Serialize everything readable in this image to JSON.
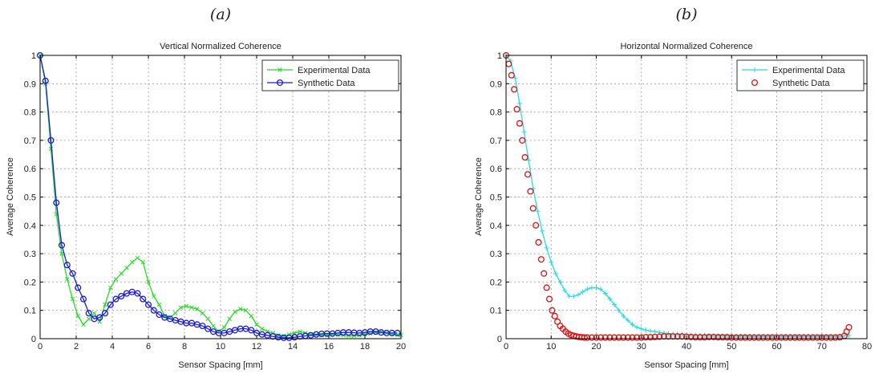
{
  "chart_data": [
    {
      "type": "line",
      "panel_label": "(a)",
      "title": "Vertical Normalized Coherence",
      "xlabel": "Sensor Spacing [mm]",
      "ylabel": "Average Coherence",
      "xlim": [
        0,
        20
      ],
      "ylim": [
        0,
        1
      ],
      "xticks": [
        0,
        2,
        4,
        6,
        8,
        10,
        12,
        14,
        16,
        18,
        20
      ],
      "yticks": [
        0,
        0.1,
        0.2,
        0.3,
        0.4,
        0.5,
        0.6,
        0.7,
        0.8,
        0.9,
        1
      ],
      "grid": true,
      "legend_position": "top-right",
      "series": [
        {
          "name": "Experimental Data",
          "color": "#22dd22",
          "marker": "x",
          "x": [
            0,
            0.3,
            0.6,
            0.9,
            1.2,
            1.5,
            1.8,
            2.1,
            2.4,
            2.7,
            3.0,
            3.3,
            3.6,
            3.9,
            4.2,
            4.5,
            4.8,
            5.1,
            5.4,
            5.7,
            6.0,
            6.3,
            6.6,
            6.9,
            7.2,
            7.5,
            7.8,
            8.1,
            8.4,
            8.7,
            9.0,
            9.3,
            9.6,
            9.9,
            10.2,
            10.5,
            10.8,
            11.1,
            11.4,
            11.7,
            12.0,
            12.3,
            12.6,
            12.9,
            13.2,
            13.5,
            13.8,
            14.1,
            14.4,
            14.7,
            15.0,
            15.3,
            15.6,
            15.9,
            16.2,
            16.5,
            16.8,
            17.1,
            17.4,
            17.7,
            18.0,
            18.3,
            18.6,
            18.9,
            19.2,
            19.5,
            19.8,
            20.0
          ],
          "y": [
            1.0,
            0.9,
            0.67,
            0.44,
            0.3,
            0.21,
            0.14,
            0.08,
            0.05,
            0.07,
            0.09,
            0.06,
            0.12,
            0.18,
            0.21,
            0.23,
            0.25,
            0.27,
            0.285,
            0.27,
            0.2,
            0.15,
            0.12,
            0.08,
            0.075,
            0.09,
            0.11,
            0.115,
            0.11,
            0.105,
            0.09,
            0.07,
            0.045,
            0.025,
            0.04,
            0.07,
            0.095,
            0.105,
            0.1,
            0.08,
            0.05,
            0.035,
            0.025,
            0.02,
            0.012,
            0.01,
            0.015,
            0.02,
            0.025,
            0.02,
            0.015,
            0.013,
            0.012,
            0.013,
            0.015,
            0.014,
            0.012,
            0.01,
            0.01,
            0.012,
            0.015,
            0.018,
            0.022,
            0.024,
            0.02,
            0.016,
            0.014,
            0.012
          ]
        },
        {
          "name": "Synthetic Data",
          "color": "#1a1ad9",
          "marker": "o",
          "x": [
            0,
            0.3,
            0.6,
            0.9,
            1.2,
            1.5,
            1.8,
            2.1,
            2.4,
            2.7,
            3.0,
            3.3,
            3.6,
            3.9,
            4.2,
            4.5,
            4.8,
            5.1,
            5.4,
            5.7,
            6.0,
            6.3,
            6.6,
            6.9,
            7.2,
            7.5,
            7.8,
            8.1,
            8.4,
            8.7,
            9.0,
            9.3,
            9.6,
            9.9,
            10.2,
            10.5,
            10.8,
            11.1,
            11.4,
            11.7,
            12.0,
            12.3,
            12.6,
            12.9,
            13.2,
            13.5,
            13.8,
            14.1,
            14.4,
            14.7,
            15.0,
            15.3,
            15.6,
            15.9,
            16.2,
            16.5,
            16.8,
            17.1,
            17.4,
            17.7,
            18.0,
            18.3,
            18.6,
            18.9,
            19.2,
            19.5,
            19.8
          ],
          "y": [
            1.0,
            0.91,
            0.7,
            0.48,
            0.33,
            0.26,
            0.23,
            0.18,
            0.14,
            0.09,
            0.07,
            0.075,
            0.09,
            0.12,
            0.14,
            0.15,
            0.16,
            0.165,
            0.16,
            0.14,
            0.12,
            0.1,
            0.085,
            0.075,
            0.07,
            0.065,
            0.06,
            0.055,
            0.055,
            0.05,
            0.045,
            0.035,
            0.025,
            0.02,
            0.02,
            0.025,
            0.03,
            0.035,
            0.035,
            0.03,
            0.02,
            0.015,
            0.012,
            0.008,
            0.005,
            0.003,
            0.003,
            0.005,
            0.008,
            0.01,
            0.012,
            0.015,
            0.017,
            0.018,
            0.018,
            0.02,
            0.022,
            0.022,
            0.021,
            0.02,
            0.022,
            0.025,
            0.025,
            0.022,
            0.02,
            0.02,
            0.02
          ]
        }
      ]
    },
    {
      "type": "line",
      "panel_label": "(b)",
      "title": "Horizontal Normalized Coherence",
      "xlabel": "Sensor Spacing [mm]",
      "ylabel": "Average Coherence",
      "xlim": [
        0,
        80
      ],
      "ylim": [
        0,
        1
      ],
      "xticks": [
        0,
        10,
        20,
        30,
        40,
        50,
        60,
        70,
        80
      ],
      "yticks": [
        0,
        0.1,
        0.2,
        0.3,
        0.4,
        0.5,
        0.6,
        0.7,
        0.8,
        0.9,
        1
      ],
      "grid": true,
      "legend_position": "top-right",
      "series": [
        {
          "name": "Experimental Data",
          "color": "#22dde6",
          "marker": "+",
          "x": [
            0,
            1,
            2,
            3,
            4,
            5,
            6,
            7,
            8,
            9,
            10,
            11,
            12,
            13,
            14,
            15,
            16,
            17,
            18,
            19,
            20,
            21,
            22,
            23,
            24,
            25,
            26,
            27,
            28,
            29,
            30,
            31,
            32,
            33,
            34,
            35,
            36,
            37,
            38,
            39,
            40,
            41,
            42,
            43,
            44,
            45,
            46,
            47,
            48,
            49,
            50,
            51,
            52,
            53,
            54,
            55,
            56,
            57,
            58,
            59,
            60,
            61,
            62,
            63,
            64,
            65,
            66,
            67,
            68,
            69,
            70,
            71,
            72,
            73,
            74,
            75,
            76
          ],
          "y": [
            1.0,
            0.98,
            0.92,
            0.83,
            0.73,
            0.63,
            0.53,
            0.45,
            0.38,
            0.32,
            0.27,
            0.23,
            0.2,
            0.17,
            0.15,
            0.15,
            0.155,
            0.165,
            0.175,
            0.18,
            0.18,
            0.175,
            0.16,
            0.14,
            0.12,
            0.1,
            0.08,
            0.065,
            0.05,
            0.04,
            0.035,
            0.03,
            0.027,
            0.025,
            0.022,
            0.02,
            0.018,
            0.017,
            0.016,
            0.015,
            0.014,
            0.013,
            0.012,
            0.012,
            0.012,
            0.011,
            0.01,
            0.01,
            0.01,
            0.01,
            0.009,
            0.009,
            0.009,
            0.009,
            0.008,
            0.008,
            0.008,
            0.008,
            0.008,
            0.008,
            0.008,
            0.008,
            0.008,
            0.008,
            0.008,
            0.008,
            0.008,
            0.008,
            0.008,
            0.008,
            0.008,
            0.008,
            0.008,
            0.008,
            0.008,
            0.01,
            0.012
          ]
        },
        {
          "name": "Synthetic Data",
          "color": "#dd1111",
          "marker": "o",
          "x": [
            0,
            0.6,
            1.2,
            1.8,
            2.4,
            3.0,
            3.6,
            4.2,
            4.8,
            5.4,
            6.0,
            6.6,
            7.2,
            7.8,
            8.4,
            9.0,
            9.6,
            10.2,
            10.8,
            11.4,
            12.0,
            12.6,
            13.2,
            13.8,
            14.4,
            15.0,
            15.6,
            16.2,
            16.8,
            17.4,
            18.0,
            19.0,
            20.0,
            21.0,
            22.0,
            23.0,
            24.0,
            25.0,
            26.0,
            27.0,
            28.0,
            29.0,
            30.0,
            31.0,
            32.0,
            33.0,
            34.0,
            35.0,
            36.0,
            37.0,
            38.0,
            39.0,
            40.0,
            41.0,
            42.0,
            43.0,
            44.0,
            45.0,
            46.0,
            47.0,
            48.0,
            49.0,
            50.0,
            51.0,
            52.0,
            53.0,
            54.0,
            55.0,
            56.0,
            57.0,
            58.0,
            59.0,
            60.0,
            61.0,
            62.0,
            63.0,
            64.0,
            65.0,
            66.0,
            67.0,
            68.0,
            69.0,
            70.0,
            71.0,
            72.0,
            73.0,
            74.0,
            75.0,
            75.5,
            76.0
          ],
          "y": [
            1.0,
            0.97,
            0.93,
            0.88,
            0.81,
            0.76,
            0.7,
            0.64,
            0.58,
            0.52,
            0.46,
            0.4,
            0.34,
            0.28,
            0.23,
            0.18,
            0.14,
            0.1,
            0.08,
            0.06,
            0.045,
            0.035,
            0.025,
            0.018,
            0.013,
            0.01,
            0.008,
            0.006,
            0.005,
            0.004,
            0.004,
            0.004,
            0.004,
            0.004,
            0.004,
            0.004,
            0.004,
            0.004,
            0.004,
            0.004,
            0.004,
            0.004,
            0.004,
            0.005,
            0.005,
            0.006,
            0.007,
            0.008,
            0.008,
            0.008,
            0.008,
            0.008,
            0.007,
            0.006,
            0.005,
            0.005,
            0.005,
            0.006,
            0.006,
            0.005,
            0.005,
            0.005,
            0.004,
            0.004,
            0.004,
            0.004,
            0.004,
            0.004,
            0.004,
            0.004,
            0.004,
            0.004,
            0.004,
            0.004,
            0.004,
            0.004,
            0.004,
            0.004,
            0.004,
            0.004,
            0.004,
            0.004,
            0.004,
            0.004,
            0.004,
            0.004,
            0.005,
            0.01,
            0.025,
            0.04
          ]
        }
      ]
    }
  ]
}
